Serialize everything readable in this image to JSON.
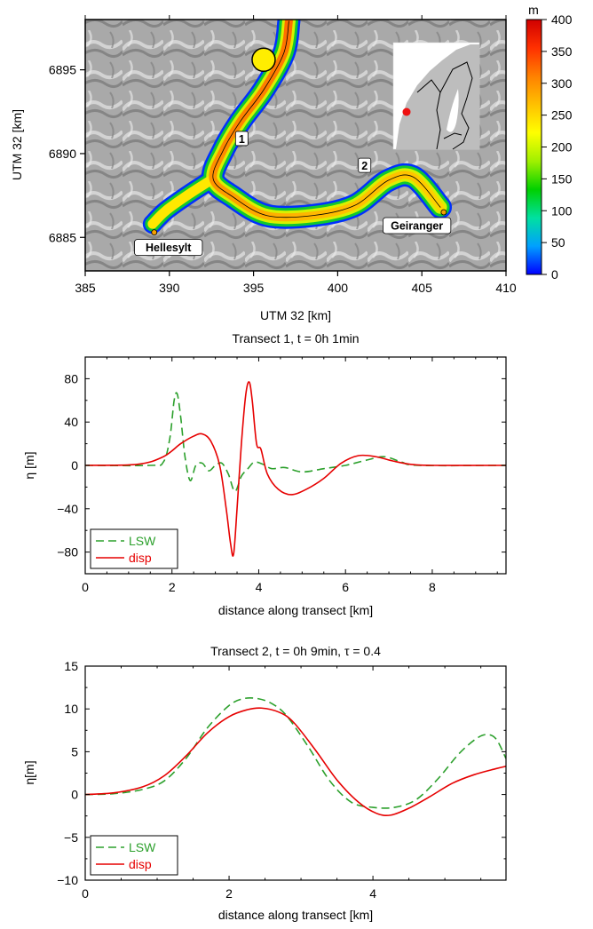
{
  "map": {
    "xlabel": "UTM 32 [km]",
    "ylabel": "UTM 32 [km]",
    "xlim": [
      385,
      410
    ],
    "ylim": [
      6883,
      6898
    ],
    "xticks": [
      385,
      390,
      395,
      400,
      405,
      410
    ],
    "yticks": [
      6885,
      6890,
      6895
    ],
    "colorbar": {
      "unit": "m",
      "range": [
        0,
        400
      ],
      "ticks": [
        0,
        50,
        100,
        150,
        200,
        250,
        300,
        350,
        400
      ],
      "colors": [
        "#0000ff",
        "#00a0ff",
        "#00e0a0",
        "#00d000",
        "#a0f000",
        "#ffff00",
        "#ffc000",
        "#ff8000",
        "#ff3000",
        "#d00000"
      ]
    },
    "places": [
      {
        "label": "Hellesylt",
        "x": 389.1,
        "y": 6885.3
      },
      {
        "label": "Geiranger",
        "x": 406.3,
        "y": 6886.5
      }
    ],
    "transect_labels": [
      {
        "label": "1",
        "x": 394.3,
        "y": 6890.9
      },
      {
        "label": "2",
        "x": 401.6,
        "y": 6889.3
      }
    ],
    "slide_source": {
      "x": 395.6,
      "y": 6895.6
    },
    "fjord_centerline": [
      [
        397.1,
        6897.9
      ],
      [
        396.8,
        6896.0
      ],
      [
        395.6,
        6893.8
      ],
      [
        394.2,
        6891.9
      ],
      [
        393.2,
        6890.2
      ],
      [
        392.6,
        6888.5
      ],
      [
        393.8,
        6887.4
      ],
      [
        395.8,
        6886.3
      ],
      [
        398.5,
        6886.3
      ],
      [
        401.0,
        6886.9
      ],
      [
        403.0,
        6888.4
      ],
      [
        404.5,
        6888.6
      ],
      [
        406.1,
        6886.8
      ]
    ],
    "branch_centerline": [
      [
        392.6,
        6888.5
      ],
      [
        391.2,
        6887.6
      ],
      [
        389.8,
        6886.6
      ],
      [
        389.0,
        6885.8
      ]
    ]
  },
  "chart_data": [
    {
      "type": "line",
      "title": "Transect 1, t = 0h 1min",
      "xlabel": "distance along transect [km]",
      "ylabel": "η [m]",
      "xlim": [
        0,
        9.7
      ],
      "ylim": [
        -100,
        100
      ],
      "xticks": [
        0,
        2,
        4,
        6,
        8
      ],
      "yticks": [
        -80,
        -40,
        0,
        40,
        80
      ],
      "legend": "bottom-left",
      "series": [
        {
          "name": "LSW",
          "color": "#2ca02c",
          "dash": "dashed",
          "x": [
            0,
            1.5,
            1.8,
            1.95,
            2.05,
            2.12,
            2.2,
            2.3,
            2.42,
            2.55,
            2.7,
            2.85,
            3.0,
            3.15,
            3.3,
            3.45,
            3.6,
            3.75,
            3.9,
            4.1,
            4.3,
            4.6,
            5.0,
            5.5,
            6.0,
            6.5,
            6.9,
            7.3,
            7.7,
            9.7
          ],
          "y": [
            0,
            0,
            3,
            25,
            60,
            66,
            45,
            8,
            -14,
            0,
            2,
            -5,
            0,
            2,
            -8,
            -24,
            -10,
            -3,
            3,
            1,
            -3,
            -2,
            -6,
            -3,
            0,
            5,
            8,
            3,
            0,
            0
          ]
        },
        {
          "name": "disp",
          "color": "#e60000",
          "dash": "solid",
          "x": [
            0,
            1.2,
            1.8,
            2.2,
            2.5,
            2.7,
            2.9,
            3.1,
            3.25,
            3.35,
            3.42,
            3.5,
            3.6,
            3.7,
            3.78,
            3.85,
            3.95,
            4.05,
            4.2,
            4.45,
            4.75,
            5.1,
            5.5,
            5.9,
            6.3,
            6.7,
            7.1,
            7.5,
            8.0,
            9.7
          ],
          "y": [
            0,
            1,
            8,
            20,
            27,
            29,
            22,
            0,
            -40,
            -72,
            -82,
            -40,
            20,
            65,
            77,
            60,
            20,
            15,
            -8,
            -22,
            -27,
            -22,
            -12,
            2,
            9,
            8,
            4,
            1,
            0,
            0
          ]
        }
      ]
    },
    {
      "type": "line",
      "title": "Transect 2, t = 0h 9min, τ = 0.4",
      "xlabel": "distance along transect [km]",
      "ylabel": "η[m]",
      "xlim": [
        0,
        5.85
      ],
      "ylim": [
        -10,
        15
      ],
      "xticks": [
        0,
        2,
        4
      ],
      "yticks": [
        -10,
        -5,
        0,
        5,
        10,
        15
      ],
      "legend": "bottom-left",
      "series": [
        {
          "name": "LSW",
          "color": "#2ca02c",
          "dash": "dashed",
          "x": [
            0,
            0.4,
            0.8,
            1.1,
            1.4,
            1.7,
            2.0,
            2.2,
            2.4,
            2.6,
            2.8,
            3.1,
            3.4,
            3.7,
            4.0,
            4.3,
            4.6,
            4.9,
            5.2,
            5.45,
            5.6,
            5.72,
            5.85
          ],
          "y": [
            0,
            0.1,
            0.6,
            1.6,
            4.2,
            7.8,
            10.4,
            11.2,
            11.2,
            10.6,
            9.2,
            5.6,
            1.6,
            -0.9,
            -1.5,
            -1.5,
            -0.6,
            1.8,
            4.8,
            6.6,
            7.0,
            6.4,
            4.2
          ]
        },
        {
          "name": "disp",
          "color": "#e60000",
          "dash": "solid",
          "x": [
            0,
            0.4,
            0.8,
            1.1,
            1.4,
            1.7,
            2.0,
            2.25,
            2.45,
            2.7,
            2.9,
            3.2,
            3.5,
            3.8,
            4.05,
            4.25,
            4.5,
            4.8,
            5.1,
            5.4,
            5.7,
            5.85
          ],
          "y": [
            0,
            0.2,
            0.9,
            2.2,
            4.5,
            7.2,
            9.1,
            9.9,
            10.1,
            9.6,
            8.4,
            5.2,
            1.7,
            -0.9,
            -2.2,
            -2.4,
            -1.6,
            -0.2,
            1.3,
            2.3,
            3.0,
            3.3
          ]
        }
      ]
    }
  ]
}
